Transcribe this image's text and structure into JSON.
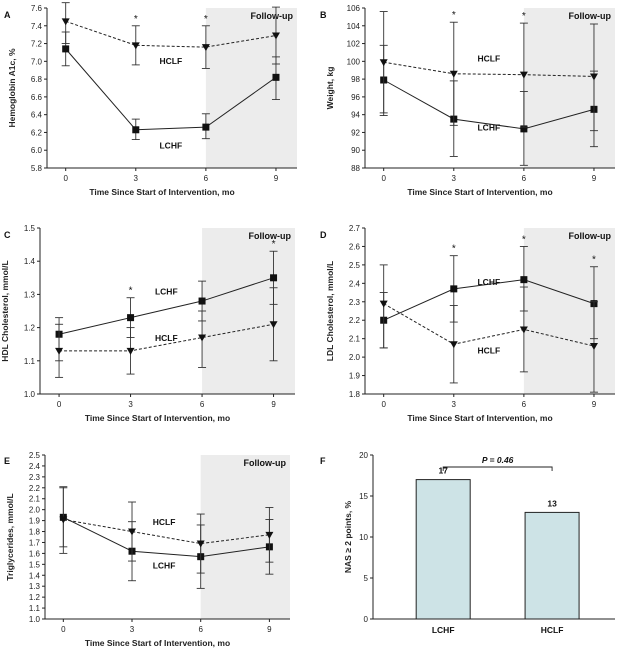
{
  "colors": {
    "followup_shade": "#ececec",
    "bar_fill": "#cde3e6",
    "line": "#222222"
  },
  "chart_data": [
    {
      "panel": "A",
      "type": "line",
      "ylabel": "Hemoglobin A1c, %",
      "xlabel": "Time Since Start of Intervention, mo",
      "x": [
        0,
        3,
        6,
        9
      ],
      "xticks": [
        "0",
        "3",
        "6",
        "9"
      ],
      "ylim": [
        5.8,
        7.6
      ],
      "yticks": [
        "5.8",
        "6.0",
        "6.2",
        "6.4",
        "6.6",
        "6.8",
        "7.0",
        "7.2",
        "7.4",
        "7.6"
      ],
      "followup_label": "Follow-up",
      "followup_range": [
        6,
        9.9
      ],
      "series": [
        {
          "name": "LCHF",
          "marker": "square",
          "dash": false,
          "values": [
            7.14,
            6.23,
            6.26,
            6.82
          ],
          "err_low": [
            6.95,
            6.12,
            6.13,
            6.57
          ],
          "err_high": [
            7.33,
            6.35,
            6.41,
            7.05
          ]
        },
        {
          "name": "HCLF",
          "marker": "triangle",
          "dash": true,
          "values": [
            7.45,
            7.18,
            7.16,
            7.29
          ],
          "err_low": [
            7.2,
            6.96,
            6.92,
            6.97
          ],
          "err_high": [
            7.66,
            7.4,
            7.4,
            7.61
          ]
        }
      ],
      "labels": [
        {
          "text": "HCLF",
          "x": 4.5,
          "y": 6.97
        },
        {
          "text": "LCHF",
          "x": 4.5,
          "y": 6.02
        }
      ],
      "stars": [
        3,
        6
      ]
    },
    {
      "panel": "B",
      "type": "line",
      "ylabel": "Weight, kg",
      "xlabel": "Time Since Start of Intervention, mo",
      "x": [
        0,
        3,
        6,
        9
      ],
      "xticks": [
        "0",
        "3",
        "6",
        "9"
      ],
      "ylim": [
        88,
        106
      ],
      "yticks": [
        "88",
        "90",
        "92",
        "94",
        "96",
        "98",
        "100",
        "102",
        "104",
        "106"
      ],
      "followup_label": "Follow-up",
      "followup_range": [
        6,
        9.9
      ],
      "series": [
        {
          "name": "LCHF",
          "marker": "square",
          "dash": false,
          "values": [
            97.9,
            93.5,
            92.4,
            94.6
          ],
          "err_low": [
            94.2,
            89.3,
            88.3,
            90.4
          ],
          "err_high": [
            101.8,
            97.8,
            96.6,
            98.9
          ]
        },
        {
          "name": "HCLF",
          "marker": "triangle",
          "dash": true,
          "values": [
            99.9,
            98.6,
            98.5,
            98.3
          ],
          "err_low": [
            93.9,
            92.8,
            92.6,
            92.2
          ],
          "err_high": [
            105.6,
            104.4,
            104.3,
            104.2
          ]
        }
      ],
      "labels": [
        {
          "text": "HCLF",
          "x": 4.5,
          "y": 100.0
        },
        {
          "text": "LCHF",
          "x": 4.5,
          "y": 92.2
        }
      ],
      "stars": [
        3,
        6
      ]
    },
    {
      "panel": "C",
      "type": "line",
      "ylabel": "HDL Cholesterol, mmol/L",
      "xlabel": "Time Since Start of Intervention, mo",
      "x": [
        0,
        3,
        6,
        9
      ],
      "xticks": [
        "0",
        "3",
        "6",
        "9"
      ],
      "ylim": [
        1.0,
        1.5
      ],
      "yticks": [
        "1.0",
        "1.1",
        "1.2",
        "1.3",
        "1.4",
        "1.5"
      ],
      "followup_label": "Follow-up",
      "followup_range": [
        6,
        9.9
      ],
      "series": [
        {
          "name": "LCHF",
          "marker": "square",
          "dash": false,
          "values": [
            1.18,
            1.23,
            1.28,
            1.35
          ],
          "err_low": [
            1.1,
            1.17,
            1.22,
            1.27
          ],
          "err_high": [
            1.23,
            1.29,
            1.34,
            1.43
          ]
        },
        {
          "name": "HCLF",
          "marker": "triangle",
          "dash": true,
          "values": [
            1.13,
            1.13,
            1.17,
            1.21
          ],
          "err_low": [
            1.05,
            1.06,
            1.08,
            1.1
          ],
          "err_high": [
            1.21,
            1.2,
            1.25,
            1.32
          ]
        }
      ],
      "labels": [
        {
          "text": "LCHF",
          "x": 4.5,
          "y": 1.3
        },
        {
          "text": "HCLF",
          "x": 4.5,
          "y": 1.16
        }
      ],
      "stars": [
        3,
        9
      ]
    },
    {
      "panel": "D",
      "type": "line",
      "ylabel": "LDL Cholesterol, mmol/L",
      "xlabel": "Time Since Start of Intervention, mo",
      "x": [
        0,
        3,
        6,
        9
      ],
      "xticks": [
        "0",
        "3",
        "6",
        "9"
      ],
      "ylim": [
        1.8,
        2.7
      ],
      "yticks": [
        "1.8",
        "1.9",
        "2.0",
        "2.1",
        "2.2",
        "2.3",
        "2.4",
        "2.5",
        "2.6",
        "2.7"
      ],
      "followup_label": "Follow-up",
      "followup_range": [
        6,
        9.9
      ],
      "series": [
        {
          "name": "LCHF",
          "marker": "square",
          "dash": false,
          "values": [
            2.2,
            2.37,
            2.42,
            2.29
          ],
          "err_low": [
            2.05,
            2.19,
            2.25,
            2.1
          ],
          "err_high": [
            2.35,
            2.55,
            2.6,
            2.49
          ]
        },
        {
          "name": "HCLF",
          "marker": "triangle",
          "dash": true,
          "values": [
            2.29,
            2.07,
            2.15,
            2.06
          ],
          "err_low": [
            2.05,
            1.86,
            1.92,
            1.81
          ],
          "err_high": [
            2.5,
            2.28,
            2.38,
            2.3
          ]
        }
      ],
      "labels": [
        {
          "text": "LCHF",
          "x": 4.5,
          "y": 2.39
        },
        {
          "text": "HCLF",
          "x": 4.5,
          "y": 2.02
        }
      ],
      "stars": [
        3,
        6,
        9
      ]
    },
    {
      "panel": "E",
      "type": "line",
      "ylabel": "Triglycerides, mmol/L",
      "xlabel": "Time Since Start of Intervention, mo",
      "x": [
        0,
        3,
        6,
        9
      ],
      "xticks": [
        "0",
        "3",
        "6",
        "9"
      ],
      "ylim": [
        1.0,
        2.5
      ],
      "yticks": [
        "1.0",
        "1.1",
        "1.2",
        "1.3",
        "1.4",
        "1.5",
        "1.6",
        "1.7",
        "1.8",
        "1.9",
        "2.0",
        "2.1",
        "2.2",
        "2.3",
        "2.4",
        "2.5"
      ],
      "followup_label": "Follow-up",
      "followup_range": [
        6,
        9.9
      ],
      "series": [
        {
          "name": "LCHF",
          "marker": "square",
          "dash": false,
          "values": [
            1.93,
            1.62,
            1.57,
            1.66
          ],
          "err_low": [
            1.66,
            1.35,
            1.28,
            1.41
          ],
          "err_high": [
            2.2,
            1.89,
            1.86,
            1.91
          ]
        },
        {
          "name": "HCLF",
          "marker": "triangle",
          "dash": true,
          "values": [
            1.91,
            1.8,
            1.69,
            1.77
          ],
          "err_low": [
            1.6,
            1.53,
            1.42,
            1.52
          ],
          "err_high": [
            2.21,
            2.07,
            1.96,
            2.02
          ]
        }
      ],
      "labels": [
        {
          "text": "HCLF",
          "x": 4.4,
          "y": 1.86
        },
        {
          "text": "LCHF",
          "x": 4.4,
          "y": 1.46
        }
      ],
      "stars": []
    },
    {
      "panel": "F",
      "type": "bar",
      "ylabel": "NAS ≥ 2 points, %",
      "categories": [
        "LCHF",
        "HCLF"
      ],
      "values": [
        17,
        13
      ],
      "data_labels": [
        "17",
        "13"
      ],
      "ylim": [
        0,
        20
      ],
      "yticks": [
        "0",
        "5",
        "10",
        "15",
        "20"
      ],
      "pvalue_label": "P = 0.46"
    }
  ]
}
